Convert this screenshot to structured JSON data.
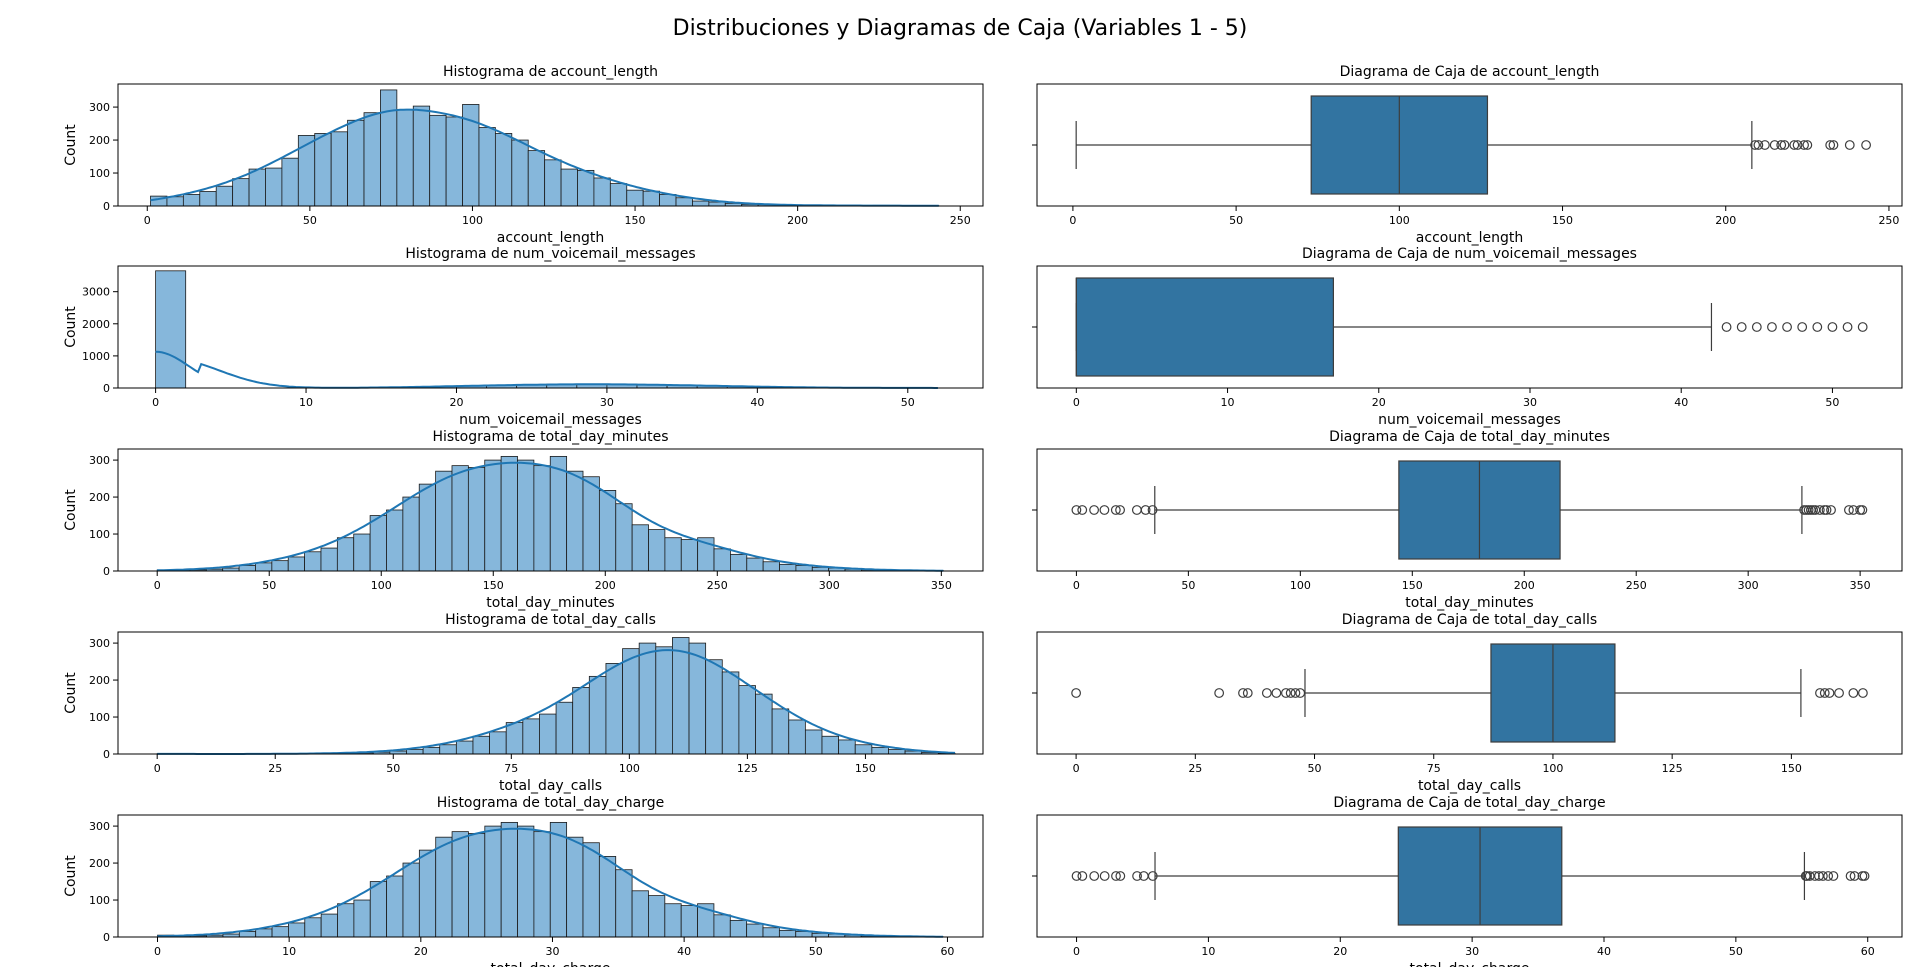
{
  "figure": {
    "title": "Distribuciones y Diagramas de Caja (Variables 1 - 5)",
    "hist_color": "#86b7db",
    "hist_edge": "#1a1a1a",
    "kde_color": "#1f77b4",
    "box_color": "#3274a1"
  },
  "chart_data": [
    {
      "type": "bar",
      "chart_kind": "histogram",
      "title": "Histograma de account_length",
      "xlabel": "account_length",
      "ylabel": "Count",
      "xlim": [
        -9,
        257
      ],
      "ylim": [
        0,
        370
      ],
      "xticks": [
        0,
        50,
        100,
        150,
        200,
        250
      ],
      "yticks": [
        0,
        100,
        200,
        300
      ],
      "bin_start": 1,
      "bin_width": 5.05,
      "values": [
        30,
        28,
        35,
        44,
        60,
        83,
        112,
        115,
        145,
        214,
        220,
        225,
        260,
        283,
        352,
        293,
        303,
        275,
        270,
        308,
        238,
        220,
        200,
        168,
        140,
        112,
        108,
        85,
        68,
        48,
        45,
        35,
        25,
        15,
        12,
        8,
        5,
        4,
        3,
        2,
        1,
        2,
        1,
        1,
        2,
        1,
        1,
        1
      ],
      "kde": true
    },
    {
      "type": "box",
      "title": "Diagrama de Caja de account_length",
      "xlabel": "account_length",
      "xlim": [
        -11,
        254
      ],
      "xticks": [
        0,
        50,
        100,
        150,
        200,
        250
      ],
      "q1": 73,
      "median": 100,
      "q3": 127,
      "whisker_low": 1,
      "whisker_high": 208,
      "outliers": [
        209,
        210,
        212,
        215,
        217,
        218,
        221,
        222,
        224,
        225,
        232,
        233,
        238,
        243
      ]
    },
    {
      "type": "bar",
      "chart_kind": "histogram",
      "title": "Histograma de num_voicemail_messages",
      "xlabel": "num_voicemail_messages",
      "ylabel": "Count",
      "xlim": [
        -2.5,
        55
      ],
      "ylim": [
        0,
        3800
      ],
      "xticks": [
        0,
        10,
        20,
        30,
        40,
        50
      ],
      "yticks": [
        0,
        1000,
        2000,
        3000
      ],
      "bin_start": 0,
      "bin_width": 2,
      "values": [
        3650,
        0,
        0,
        0,
        0,
        0,
        4,
        10,
        22,
        48,
        70,
        90,
        110,
        120,
        125,
        120,
        110,
        90,
        70,
        50,
        30,
        15,
        8,
        4,
        2,
        2
      ],
      "kde": true
    },
    {
      "type": "box",
      "title": "Diagrama de Caja de num_voicemail_messages",
      "xlabel": "num_voicemail_messages",
      "xlim": [
        -2.6,
        54.6
      ],
      "xticks": [
        0,
        10,
        20,
        30,
        40,
        50
      ],
      "q1": 0,
      "median": 0,
      "q3": 17,
      "whisker_low": 0,
      "whisker_high": 42,
      "outliers": [
        43,
        44,
        45,
        46,
        47,
        48,
        49,
        50,
        51,
        52
      ]
    },
    {
      "type": "bar",
      "chart_kind": "histogram",
      "title": "Histograma de total_day_minutes",
      "xlabel": "total_day_minutes",
      "ylabel": "Count",
      "xlim": [
        -17.5,
        368.6
      ],
      "ylim": [
        0,
        330
      ],
      "xticks": [
        0,
        50,
        100,
        150,
        200,
        250,
        300,
        350
      ],
      "yticks": [
        0,
        100,
        200,
        300
      ],
      "bin_start": 0,
      "bin_width": 7.31,
      "values": [
        3,
        3,
        3,
        5,
        8,
        15,
        22,
        28,
        38,
        52,
        62,
        90,
        100,
        150,
        165,
        200,
        235,
        270,
        285,
        280,
        300,
        310,
        300,
        285,
        310,
        270,
        255,
        218,
        182,
        125,
        112,
        90,
        85,
        90,
        60,
        45,
        35,
        25,
        18,
        15,
        10,
        8,
        5,
        3,
        2,
        2,
        1,
        1
      ],
      "kde": true
    },
    {
      "type": "box",
      "title": "Diagrama de Caja de total_day_minutes",
      "xlabel": "total_day_minutes",
      "xlim": [
        -17.6,
        368.7
      ],
      "xticks": [
        0,
        50,
        100,
        150,
        200,
        250,
        300,
        350
      ],
      "q1": 144,
      "median": 180,
      "q3": 216,
      "whisker_low": 35,
      "whisker_high": 324,
      "outliers": [
        0,
        2.6,
        7.9,
        12.5,
        17.6,
        19.5,
        27,
        30.9,
        34,
        325,
        326,
        327,
        328,
        329,
        330,
        332,
        334,
        335,
        337,
        345,
        347,
        350,
        351
      ]
    },
    {
      "type": "bar",
      "chart_kind": "histogram",
      "title": "Histograma de total_day_calls",
      "xlabel": "total_day_calls",
      "ylabel": "Count",
      "xlim": [
        -8.3,
        174.9
      ],
      "ylim": [
        0,
        330
      ],
      "xticks": [
        0,
        25,
        50,
        75,
        100,
        125,
        150
      ],
      "yticks": [
        0,
        100,
        200,
        300
      ],
      "bin_start": 0,
      "bin_width": 3.52,
      "values": [
        1,
        0,
        0,
        0,
        0,
        0,
        0,
        0,
        1,
        1,
        2,
        2,
        3,
        5,
        8,
        12,
        18,
        25,
        35,
        48,
        60,
        85,
        95,
        108,
        140,
        180,
        210,
        245,
        285,
        300,
        290,
        315,
        300,
        255,
        222,
        185,
        162,
        122,
        92,
        65,
        48,
        38,
        25,
        18,
        12,
        8,
        4,
        2
      ],
      "kde": true
    },
    {
      "type": "box",
      "title": "Diagrama de Caja de total_day_calls",
      "xlabel": "total_day_calls",
      "xlim": [
        -8.2,
        173.2
      ],
      "xticks": [
        0,
        25,
        50,
        75,
        100,
        125,
        150
      ],
      "q1": 87,
      "median": 100,
      "q3": 113,
      "whisker_low": 48,
      "whisker_high": 152,
      "outliers": [
        0,
        30,
        35,
        36,
        40,
        42,
        44,
        45,
        46,
        47,
        156,
        157,
        158,
        160,
        163,
        165
      ]
    },
    {
      "type": "bar",
      "chart_kind": "histogram",
      "title": "Histograma de total_day_charge",
      "xlabel": "total_day_charge",
      "ylabel": "Count",
      "xlim": [
        -3,
        62.7
      ],
      "ylim": [
        0,
        330
      ],
      "xticks": [
        0,
        10,
        20,
        30,
        40,
        50,
        60
      ],
      "yticks": [
        0,
        100,
        200,
        300
      ],
      "bin_start": 0,
      "bin_width": 1.243,
      "values": [
        5,
        3,
        3,
        5,
        8,
        15,
        22,
        28,
        38,
        52,
        62,
        90,
        100,
        150,
        165,
        200,
        235,
        270,
        285,
        280,
        300,
        310,
        300,
        285,
        310,
        270,
        255,
        218,
        182,
        125,
        112,
        90,
        85,
        90,
        60,
        45,
        35,
        25,
        18,
        15,
        10,
        8,
        5,
        3,
        2,
        2,
        1,
        1
      ],
      "kde": true
    },
    {
      "type": "box",
      "title": "Diagrama de Caja de total_day_charge",
      "xlabel": "total_day_charge",
      "xlim": [
        -3,
        62.6
      ],
      "xticks": [
        0,
        10,
        20,
        30,
        40,
        50,
        60
      ],
      "q1": 24.4,
      "median": 30.6,
      "q3": 36.8,
      "whisker_low": 5.95,
      "whisker_high": 55.2,
      "outliers": [
        0,
        0.44,
        1.34,
        2.13,
        2.99,
        3.32,
        4.59,
        5.1,
        5.78,
        55.3,
        55.4,
        55.6,
        56.0,
        56.3,
        56.6,
        57.0,
        57.4,
        58.7,
        59.0,
        59.6,
        59.76
      ]
    }
  ]
}
